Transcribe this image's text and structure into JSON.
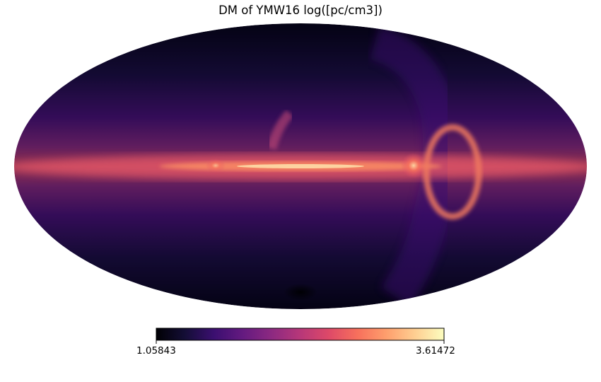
{
  "figure": {
    "title": "DM of YMW16 log([pc/cm3])"
  },
  "colors": {
    "background": "#ffffff",
    "colormap": "magma",
    "colormap_stops": [
      "#000004",
      "#140e36",
      "#3b0f70",
      "#641a80",
      "#8c2981",
      "#b73779",
      "#de4968",
      "#f7705c",
      "#fe9f6d",
      "#fecf92",
      "#fcfdbf"
    ]
  },
  "chart_data": {
    "type": "heatmap",
    "projection": "mollweide",
    "title": "DM of YMW16 log([pc/cm3])",
    "colorbar": {
      "min": 1.05843,
      "max": 3.61472,
      "min_label": "1.05843",
      "max_label": "3.61472",
      "orientation": "horizontal",
      "colormap": "magma"
    }
  }
}
